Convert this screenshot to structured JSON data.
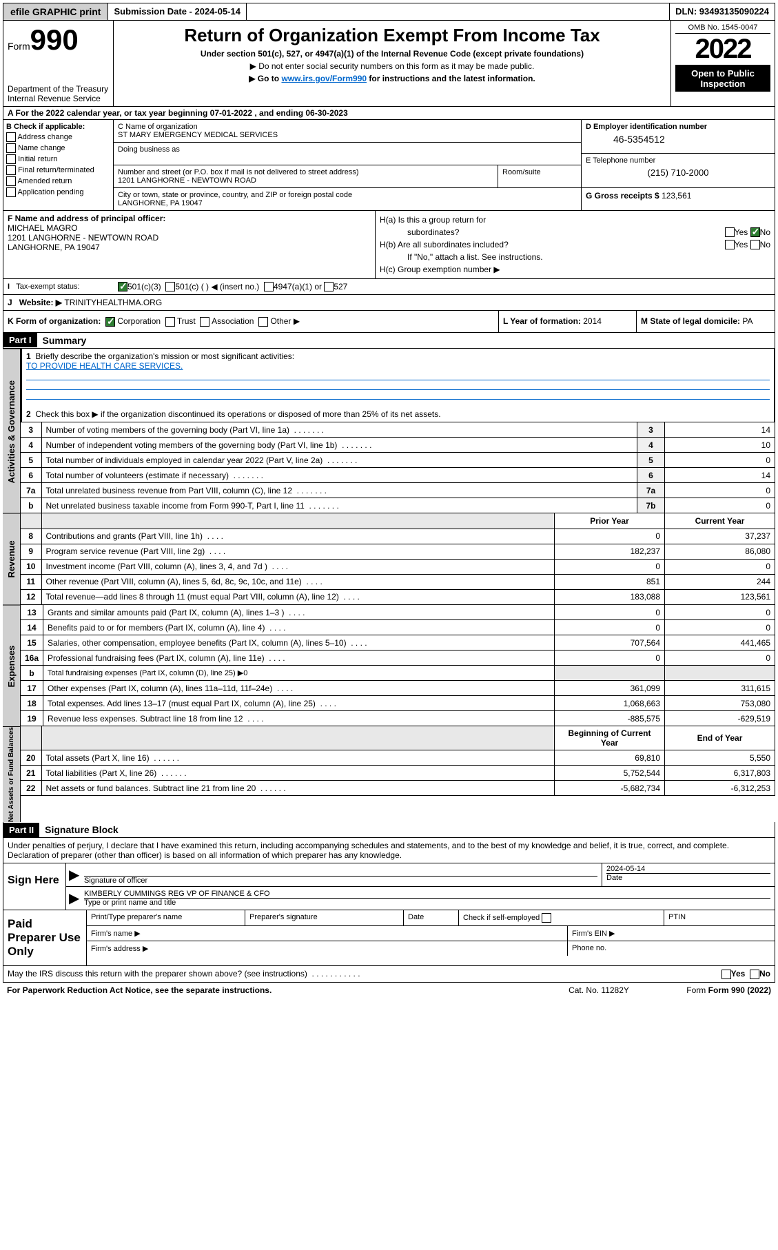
{
  "topbar": {
    "efile": "efile GRAPHIC print",
    "sub_label": "Submission Date - 2024-05-14",
    "dln": "DLN: 93493135090224"
  },
  "header": {
    "form_word": "Form",
    "form_num": "990",
    "dept": "Department of the Treasury",
    "irs": "Internal Revenue Service",
    "title": "Return of Organization Exempt From Income Tax",
    "subtitle": "Under section 501(c), 527, or 4947(a)(1) of the Internal Revenue Code (except private foundations)",
    "note1": "▶ Do not enter social security numbers on this form as it may be made public.",
    "note2_pre": "▶ Go to ",
    "note2_link": "www.irs.gov/Form990",
    "note2_post": " for instructions and the latest information.",
    "omb": "OMB No. 1545-0047",
    "year": "2022",
    "open": "Open to Public Inspection"
  },
  "row_a": "A For the 2022 calendar year, or tax year beginning 07-01-2022   , and ending 06-30-2023",
  "secB": {
    "label": "B Check if applicable:",
    "checks": [
      "Address change",
      "Name change",
      "Initial return",
      "Final return/terminated",
      "Amended return",
      "Application pending"
    ],
    "c_name_label": "C Name of organization",
    "org_name": "ST MARY EMERGENCY MEDICAL SERVICES",
    "dba_label": "Doing business as",
    "addr_label": "Number and street (or P.O. box if mail is not delivered to street address)",
    "addr": "1201 LANGHORNE - NEWTOWN ROAD",
    "room_label": "Room/suite",
    "city_label": "City or town, state or province, country, and ZIP or foreign postal code",
    "city": "LANGHORNE, PA  19047",
    "d_label": "D Employer identification number",
    "ein": "46-5354512",
    "e_label": "E Telephone number",
    "tel": "(215) 710-2000",
    "g_label": "G Gross receipts $ ",
    "gross": "123,561"
  },
  "secF": {
    "f_label": "F Name and address of principal officer:",
    "officer": "MICHAEL MAGRO",
    "officer_addr1": "1201 LANGHORNE - NEWTOWN ROAD",
    "officer_addr2": "LANGHORNE, PA  19047",
    "ha": "H(a)  Is this a group return for",
    "ha2": "subordinates?",
    "hb": "H(b)  Are all subordinates included?",
    "hb2": "If \"No,\" attach a list. See instructions.",
    "hc": "H(c)  Group exemption number ▶",
    "yes": "Yes",
    "no": "No"
  },
  "rowI": {
    "label": "Tax-exempt status:",
    "c1": "501(c)(3)",
    "c2": "501(c) (  ) ◀ (insert no.)",
    "c3": "4947(a)(1) or",
    "c4": "527"
  },
  "rowJ": {
    "label": "Website: ▶",
    "url": "TRINITYHEALTHMA.ORG"
  },
  "rowK": {
    "k_label": "K Form of organization:",
    "corp": "Corporation",
    "trust": "Trust",
    "assoc": "Association",
    "other": "Other ▶",
    "l_label": "L Year of formation: ",
    "l_val": "2014",
    "m_label": "M State of legal domicile: ",
    "m_val": "PA"
  },
  "part1": {
    "label": "Part I",
    "title": "Summary",
    "line1_label": "Briefly describe the organization's mission or most significant activities:",
    "mission": "TO PROVIDE HEALTH CARE SERVICES.",
    "line2": "Check this box ▶        if the organization discontinued its operations or disposed of more than 25% of its net assets."
  },
  "vtabs": {
    "gov": "Activities & Governance",
    "rev": "Revenue",
    "exp": "Expenses",
    "net": "Net Assets or Fund Balances"
  },
  "gov_lines": [
    {
      "n": "3",
      "d": "Number of voting members of the governing body (Part VI, line 1a)",
      "bn": "3",
      "v": "14"
    },
    {
      "n": "4",
      "d": "Number of independent voting members of the governing body (Part VI, line 1b)",
      "bn": "4",
      "v": "10"
    },
    {
      "n": "5",
      "d": "Total number of individuals employed in calendar year 2022 (Part V, line 2a)",
      "bn": "5",
      "v": "0"
    },
    {
      "n": "6",
      "d": "Total number of volunteers (estimate if necessary)",
      "bn": "6",
      "v": "14"
    },
    {
      "n": "7a",
      "d": "Total unrelated business revenue from Part VIII, column (C), line 12",
      "bn": "7a",
      "v": "0"
    },
    {
      "n": " b",
      "d": "Net unrelated business taxable income from Form 990-T, Part I, line 11",
      "bn": "7b",
      "v": "0"
    }
  ],
  "cols": {
    "prior": "Prior Year",
    "current": "Current Year"
  },
  "rev_lines": [
    {
      "n": "8",
      "d": "Contributions and grants (Part VIII, line 1h)",
      "p": "0",
      "c": "37,237"
    },
    {
      "n": "9",
      "d": "Program service revenue (Part VIII, line 2g)",
      "p": "182,237",
      "c": "86,080"
    },
    {
      "n": "10",
      "d": "Investment income (Part VIII, column (A), lines 3, 4, and 7d )",
      "p": "0",
      "c": "0"
    },
    {
      "n": "11",
      "d": "Other revenue (Part VIII, column (A), lines 5, 6d, 8c, 9c, 10c, and 11e)",
      "p": "851",
      "c": "244"
    },
    {
      "n": "12",
      "d": "Total revenue—add lines 8 through 11 (must equal Part VIII, column (A), line 12)",
      "p": "183,088",
      "c": "123,561"
    }
  ],
  "exp_lines": [
    {
      "n": "13",
      "d": "Grants and similar amounts paid (Part IX, column (A), lines 1–3 )",
      "p": "0",
      "c": "0"
    },
    {
      "n": "14",
      "d": "Benefits paid to or for members (Part IX, column (A), line 4)",
      "p": "0",
      "c": "0"
    },
    {
      "n": "15",
      "d": "Salaries, other compensation, employee benefits (Part IX, column (A), lines 5–10)",
      "p": "707,564",
      "c": "441,465"
    },
    {
      "n": "16a",
      "d": "Professional fundraising fees (Part IX, column (A), line 11e)",
      "p": "0",
      "c": "0"
    },
    {
      "n": " b",
      "d": "Total fundraising expenses (Part IX, column (D), line 25) ▶0",
      "p": "",
      "c": ""
    },
    {
      "n": "17",
      "d": "Other expenses (Part IX, column (A), lines 11a–11d, 11f–24e)",
      "p": "361,099",
      "c": "311,615"
    },
    {
      "n": "18",
      "d": "Total expenses. Add lines 13–17 (must equal Part IX, column (A), line 25)",
      "p": "1,068,663",
      "c": "753,080"
    },
    {
      "n": "19",
      "d": "Revenue less expenses. Subtract line 18 from line 12",
      "p": "-885,575",
      "c": "-629,519"
    }
  ],
  "net_cols": {
    "begin": "Beginning of Current Year",
    "end": "End of Year"
  },
  "net_lines": [
    {
      "n": "20",
      "d": "Total assets (Part X, line 16)",
      "p": "69,810",
      "c": "5,550"
    },
    {
      "n": "21",
      "d": "Total liabilities (Part X, line 26)",
      "p": "5,752,544",
      "c": "6,317,803"
    },
    {
      "n": "22",
      "d": "Net assets or fund balances. Subtract line 21 from line 20",
      "p": "-5,682,734",
      "c": "-6,312,253"
    }
  ],
  "part2": {
    "label": "Part II",
    "title": "Signature Block",
    "penalties": "Under penalties of perjury, I declare that I have examined this return, including accompanying schedules and statements, and to the best of my knowledge and belief, it is true, correct, and complete. Declaration of preparer (other than officer) is based on all information of which preparer has any knowledge."
  },
  "sign": {
    "here": "Sign Here",
    "sig_label": "Signature of officer",
    "date": "2024-05-14",
    "date_label": "Date",
    "name": "KIMBERLY CUMMINGS REG VP OF FINANCE & CFO",
    "name_label": "Type or print name and title"
  },
  "paid": {
    "label": "Paid Preparer Use Only",
    "pt_name": "Print/Type preparer's name",
    "pt_sig": "Preparer's signature",
    "pt_date": "Date",
    "pt_check": "Check        if self-employed",
    "ptin": "PTIN",
    "firm_name": "Firm's name    ▶",
    "firm_ein": "Firm's EIN ▶",
    "firm_addr": "Firm's address ▶",
    "phone": "Phone no."
  },
  "footer": {
    "may": "May the IRS discuss this return with the preparer shown above? (see instructions)",
    "pra": "For Paperwork Reduction Act Notice, see the separate instructions.",
    "cat": "Cat. No. 11282Y",
    "form": "Form 990 (2022)",
    "yes": "Yes",
    "no": "No"
  }
}
